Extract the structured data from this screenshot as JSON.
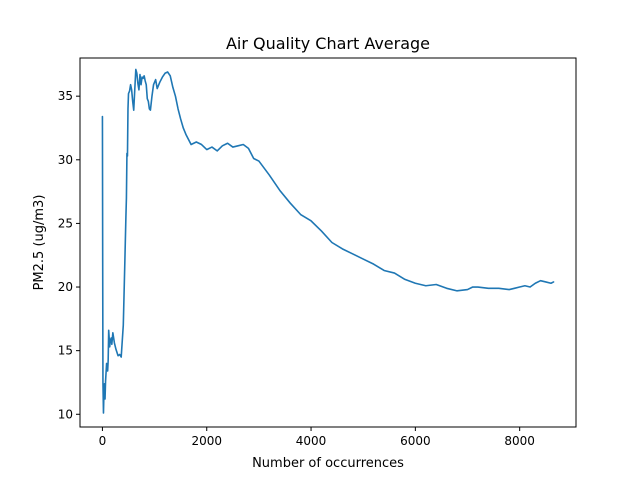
{
  "chart_data": {
    "type": "line",
    "title": "Air Quality Chart Average",
    "xlabel": "Number of occurrences",
    "ylabel": "PM2.5 (ug/m3)",
    "xlim": [
      -430,
      9080
    ],
    "ylim": [
      9.0,
      38.0
    ],
    "xticks": [
      0,
      2000,
      4000,
      6000,
      8000
    ],
    "xtick_labels": [
      "0",
      "2000",
      "4000",
      "6000",
      "8000"
    ],
    "yticks": [
      10,
      15,
      20,
      25,
      30,
      35
    ],
    "ytick_labels": [
      "10",
      "15",
      "20",
      "25",
      "30",
      "35"
    ],
    "grid": false,
    "legend": "none",
    "series": [
      {
        "color": "#1f77b4",
        "x": [
          0,
          5,
          10,
          20,
          30,
          40,
          50,
          60,
          80,
          100,
          110,
          120,
          140,
          150,
          170,
          180,
          200,
          230,
          260,
          300,
          330,
          360,
          400,
          430,
          450,
          460,
          470,
          480,
          490,
          500,
          520,
          540,
          560,
          580,
          600,
          620,
          640,
          660,
          680,
          700,
          720,
          740,
          760,
          780,
          800,
          820,
          840,
          860,
          880,
          900,
          920,
          950,
          980,
          1000,
          1020,
          1050,
          1100,
          1150,
          1200,
          1250,
          1300,
          1350,
          1400,
          1450,
          1500,
          1550,
          1600,
          1700,
          1800,
          1900,
          2000,
          2100,
          2200,
          2300,
          2400,
          2500,
          2600,
          2700,
          2800,
          2900,
          3000,
          3200,
          3400,
          3600,
          3800,
          4000,
          4200,
          4400,
          4600,
          4800,
          5000,
          5200,
          5400,
          5600,
          5800,
          6000,
          6200,
          6400,
          6600,
          6800,
          7000,
          7100,
          7200,
          7400,
          7600,
          7800,
          7900,
          8000,
          8100,
          8200,
          8300,
          8400,
          8500,
          8600,
          8650
        ],
        "values": [
          33.4,
          22.0,
          12.5,
          10.1,
          11.8,
          12.4,
          11.2,
          12.6,
          14.0,
          13.4,
          14.2,
          16.6,
          15.3,
          15.8,
          16.0,
          15.5,
          16.4,
          15.6,
          15.1,
          14.6,
          14.7,
          14.5,
          17.0,
          22.0,
          25.5,
          27.0,
          30.5,
          30.3,
          34.0,
          35.2,
          35.4,
          35.9,
          35.5,
          34.6,
          33.9,
          35.5,
          37.1,
          36.8,
          36.0,
          35.5,
          36.7,
          35.9,
          36.5,
          36.4,
          36.6,
          36.2,
          35.9,
          34.8,
          34.6,
          34.0,
          33.9,
          35.0,
          35.9,
          36.1,
          36.3,
          35.6,
          36.1,
          36.5,
          36.8,
          36.9,
          36.6,
          35.7,
          35.0,
          34.0,
          33.2,
          32.5,
          32.0,
          31.2,
          31.4,
          31.2,
          30.8,
          31.0,
          30.7,
          31.1,
          31.3,
          31.0,
          31.1,
          31.2,
          30.9,
          30.1,
          29.9,
          28.8,
          27.6,
          26.6,
          25.7,
          25.2,
          24.4,
          23.5,
          23.0,
          22.6,
          22.2,
          21.8,
          21.3,
          21.1,
          20.6,
          20.3,
          20.1,
          20.2,
          19.9,
          19.7,
          19.8,
          20.0,
          20.0,
          19.9,
          19.9,
          19.8,
          19.9,
          20.0,
          20.1,
          20.0,
          20.3,
          20.5,
          20.4,
          20.3,
          20.4
        ]
      }
    ]
  }
}
